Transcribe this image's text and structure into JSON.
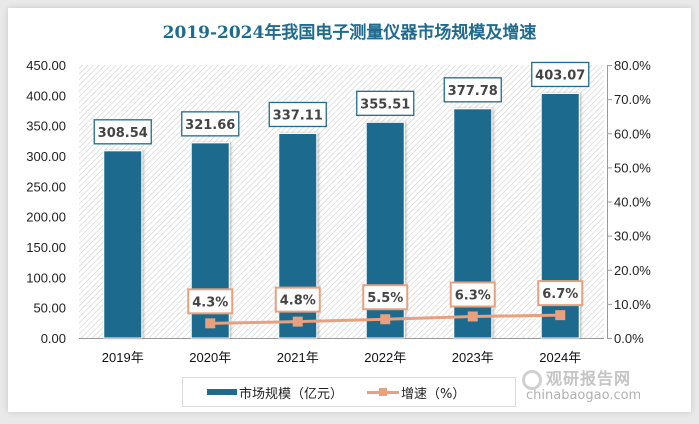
{
  "chart_data": {
    "type": "bar",
    "title": "2019-2024年我国电子测量仪器市场规模及增速",
    "categories": [
      "2019年",
      "2020年",
      "2021年",
      "2022年",
      "2023年",
      "2024年"
    ],
    "series": [
      {
        "name": "市场规模（亿元）",
        "type": "bar",
        "axis": "left",
        "color": "#1f6b8e",
        "values": [
          308.54,
          321.66,
          337.11,
          355.51,
          377.78,
          403.07
        ],
        "labels": [
          "308.54",
          "321.66",
          "337.11",
          "355.51",
          "377.78",
          "403.07"
        ]
      },
      {
        "name": "增速（%）",
        "type": "line",
        "axis": "right",
        "color": "#e8a07e",
        "values": [
          null,
          4.3,
          4.8,
          5.5,
          6.3,
          6.7
        ],
        "labels": [
          "",
          "4.3%",
          "4.8%",
          "5.5%",
          "6.3%",
          "6.7%"
        ]
      }
    ],
    "y_left": {
      "range": [
        0,
        450
      ],
      "ticks": [
        "0.00",
        "50.00",
        "100.00",
        "150.00",
        "200.00",
        "250.00",
        "300.00",
        "350.00",
        "400.00",
        "450.00"
      ]
    },
    "y_right": {
      "range": [
        0,
        80
      ],
      "ticks": [
        "0.0%",
        "10.0%",
        "20.0%",
        "30.0%",
        "40.0%",
        "50.0%",
        "60.0%",
        "70.0%",
        "80.0%"
      ]
    },
    "xlabel": "",
    "ylabel": "",
    "grid": false,
    "legend_position": "bottom"
  },
  "legend": {
    "bar_label": "市场规模（亿元）",
    "line_label": "增速（%）"
  },
  "watermark": {
    "cn": "观研报告网",
    "en": "chinabaogao.com"
  }
}
